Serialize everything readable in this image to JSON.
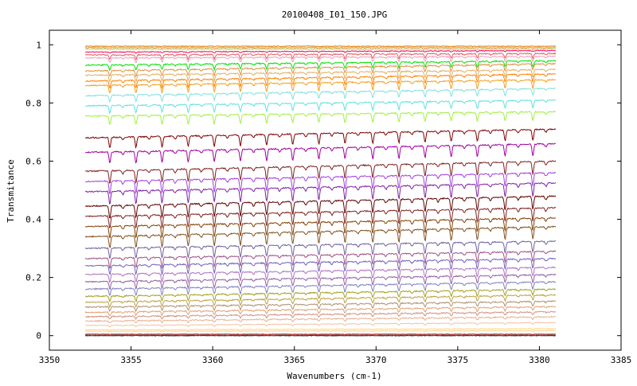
{
  "chart_data": {
    "type": "line",
    "title": "20100408_I01_150.JPG",
    "xlabel": "Wavenumbers (cm-1)",
    "ylabel": "Transmitance",
    "xlim": [
      3350,
      3385
    ],
    "ylim": [
      -0.05,
      1.05
    ],
    "x_ticks": [
      3350,
      3355,
      3360,
      3365,
      3370,
      3375,
      3380,
      3385
    ],
    "x_tick_labels": [
      "3350",
      "3355",
      "3360",
      "3365",
      "3370",
      "3375",
      "3380",
      "3385"
    ],
    "y_ticks": [
      0,
      0.2,
      0.4,
      0.6,
      0.8,
      1
    ],
    "y_tick_labels": [
      "0",
      "0.2",
      "0.4",
      "0.6",
      "0.8",
      "1"
    ],
    "grid": false,
    "x_range_data": [
      3352.2,
      3381.0
    ],
    "absorption_lines_cm1": [
      3353.7,
      3355.3,
      3356.9,
      3358.5,
      3360.1,
      3361.7,
      3363.3,
      3364.9,
      3366.5,
      3368.1,
      3369.8,
      3371.4,
      3373.0,
      3374.6,
      3376.2,
      3377.9,
      3379.6
    ],
    "series": [
      {
        "color": "#000000",
        "values": [
          0.0,
          0.0
        ]
      },
      {
        "color": "#00a0a0",
        "values": [
          0.002,
          0.002
        ]
      },
      {
        "color": "#ff0000",
        "values": [
          0.005,
          0.005
        ]
      },
      {
        "color": "#ffd27f",
        "values": [
          0.015,
          0.017
        ]
      },
      {
        "color": "#ffd27f",
        "values": [
          0.02,
          0.024
        ]
      },
      {
        "color": "#f4c0a0",
        "values": [
          0.035,
          0.045
        ]
      },
      {
        "color": "#e8b090",
        "values": [
          0.05,
          0.065
        ]
      },
      {
        "color": "#d09080",
        "values": [
          0.065,
          0.082
        ]
      },
      {
        "color": "#e0a070",
        "values": [
          0.08,
          0.1
        ]
      },
      {
        "color": "#b09070",
        "values": [
          0.098,
          0.118
        ]
      },
      {
        "color": "#c0a040",
        "values": [
          0.115,
          0.14
        ]
      },
      {
        "color": "#a0a020",
        "values": [
          0.135,
          0.16
        ]
      },
      {
        "color": "#8080c0",
        "values": [
          0.16,
          0.185
        ]
      },
      {
        "color": "#9060a0",
        "values": [
          0.185,
          0.21
        ]
      },
      {
        "color": "#b070c0",
        "values": [
          0.21,
          0.235
        ]
      },
      {
        "color": "#7060c0",
        "values": [
          0.24,
          0.265
        ]
      },
      {
        "color": "#a05080",
        "values": [
          0.265,
          0.29
        ]
      },
      {
        "color": "#7060a0",
        "values": [
          0.3,
          0.325
        ]
      },
      {
        "color": "#805020",
        "values": [
          0.34,
          0.375
        ]
      },
      {
        "color": "#804000",
        "values": [
          0.375,
          0.405
        ]
      },
      {
        "color": "#802020",
        "values": [
          0.41,
          0.44
        ]
      },
      {
        "color": "#600000",
        "values": [
          0.445,
          0.48
        ]
      },
      {
        "color": "#8020a0",
        "values": [
          0.495,
          0.525
        ]
      },
      {
        "color": "#a040e0",
        "values": [
          0.53,
          0.56
        ]
      },
      {
        "color": "#802020",
        "values": [
          0.565,
          0.6
        ]
      },
      {
        "color": "#a000a0",
        "values": [
          0.63,
          0.66
        ]
      },
      {
        "color": "#800000",
        "values": [
          0.68,
          0.71
        ]
      },
      {
        "color": "#a0f040",
        "values": [
          0.755,
          0.77
        ]
      },
      {
        "color": "#60e0e0",
        "values": [
          0.79,
          0.81
        ]
      },
      {
        "color": "#80e0e0",
        "values": [
          0.825,
          0.85
        ]
      },
      {
        "color": "#f0a020",
        "values": [
          0.86,
          0.88
        ]
      },
      {
        "color": "#ff8000",
        "values": [
          0.875,
          0.9
        ]
      },
      {
        "color": "#e0b060",
        "values": [
          0.895,
          0.915
        ]
      },
      {
        "color": "#e09040",
        "values": [
          0.91,
          0.935
        ]
      },
      {
        "color": "#00e000",
        "values": [
          0.93,
          0.945
        ]
      },
      {
        "color": "#f0a0c0",
        "values": [
          0.955,
          0.96
        ]
      },
      {
        "color": "#e06060",
        "values": [
          0.965,
          0.97
        ]
      },
      {
        "color": "#ff0060",
        "values": [
          0.975,
          0.98
        ]
      },
      {
        "color": "#a0e060",
        "values": [
          0.985,
          0.985
        ]
      },
      {
        "color": "#ff8040",
        "values": [
          0.99,
          0.99
        ]
      },
      {
        "color": "#e08000",
        "values": [
          0.995,
          0.995
        ]
      }
    ]
  }
}
